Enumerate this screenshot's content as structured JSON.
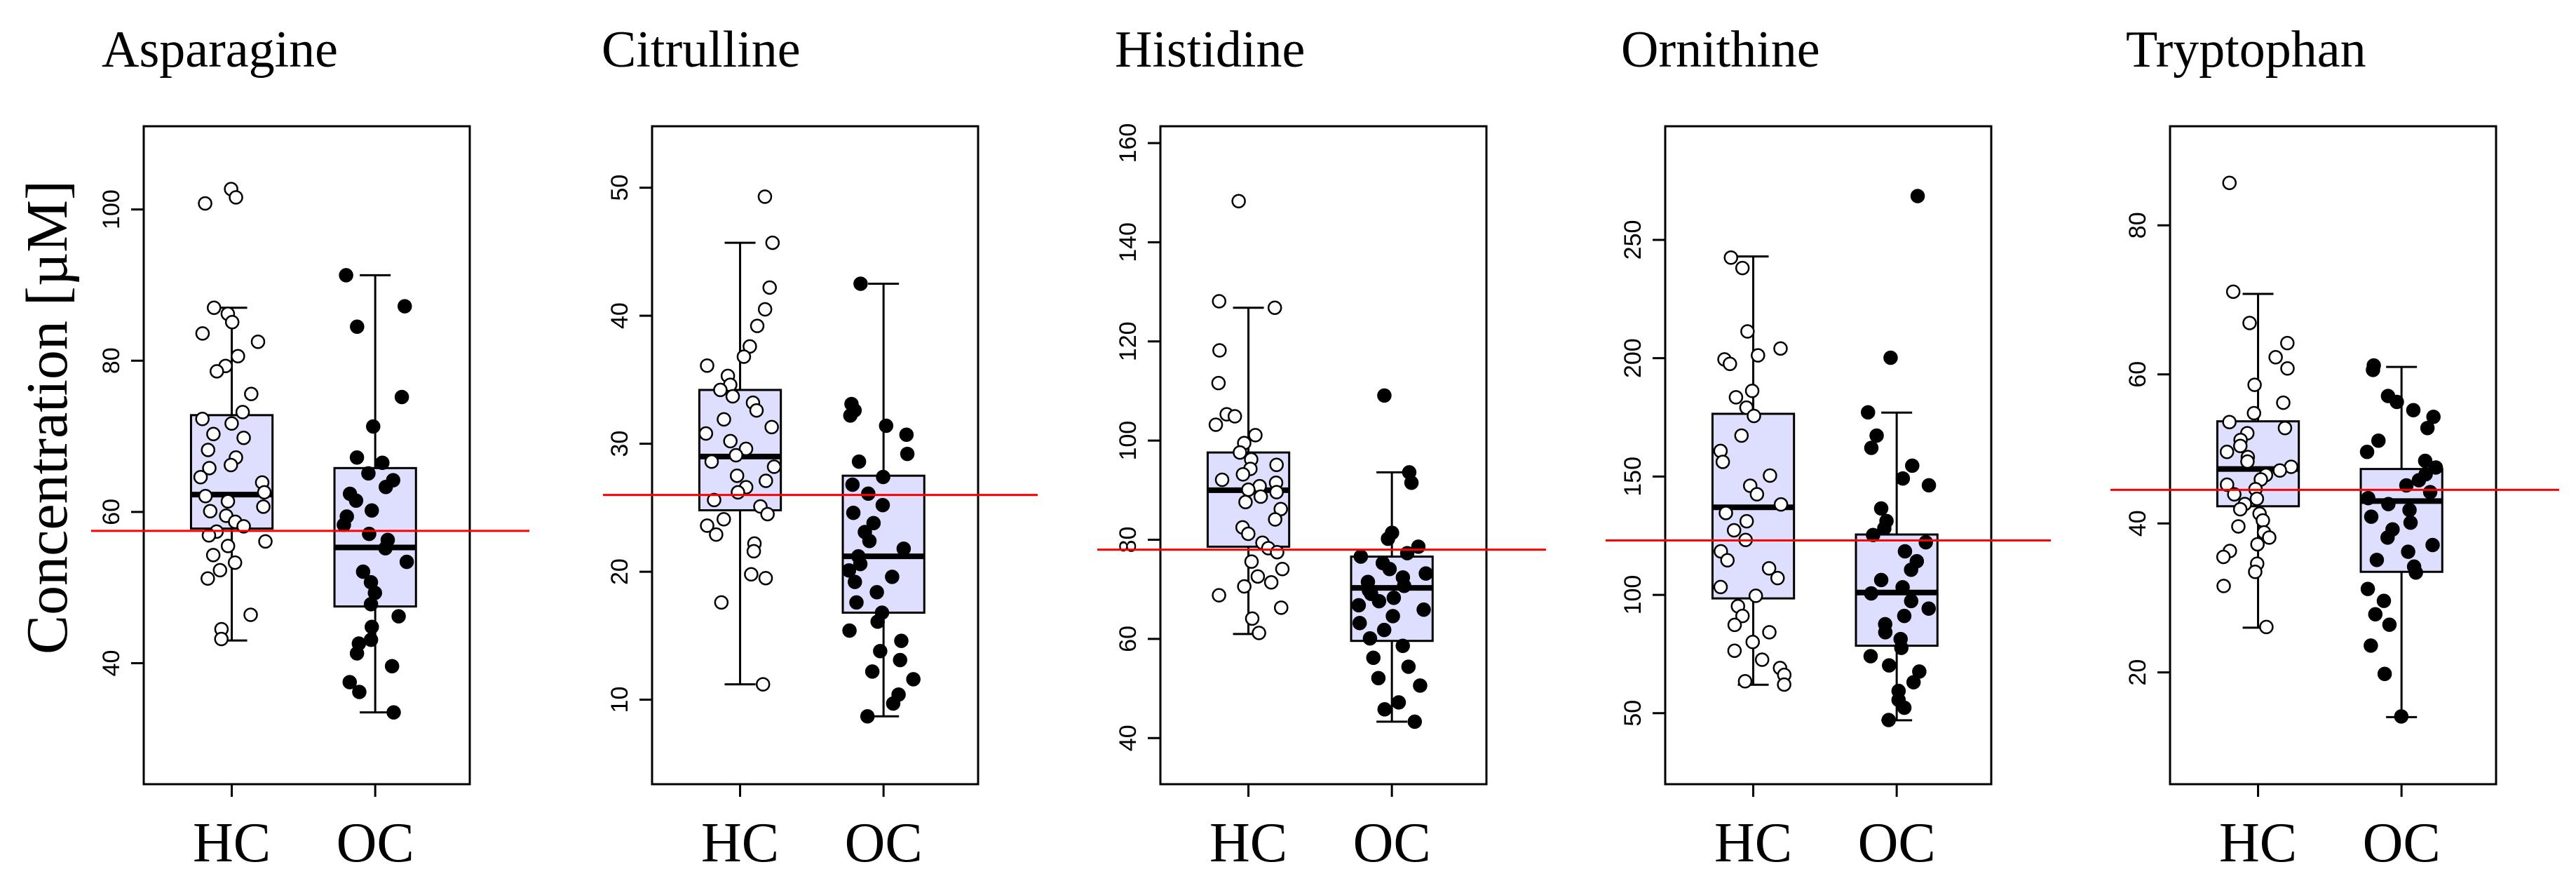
{
  "chart_data": {
    "type": "boxplot",
    "ylabel": "Concentration [µM]",
    "groups": [
      "HC",
      "OC"
    ],
    "panels": [
      {
        "title": "Asparagine",
        "yticks": [
          40,
          60,
          80,
          100
        ],
        "ylim": [
          24,
          111
        ],
        "reference_line": 57.5,
        "boxes": [
          {
            "group": "HC",
            "min": 43,
            "q1": 57.8,
            "median": 62.3,
            "q3": 72.8,
            "max": 87
          },
          {
            "group": "OC",
            "min": 33.5,
            "q1": 47.5,
            "median": 55.3,
            "q3": 65.8,
            "max": 91.3
          }
        ],
        "points": {
          "HC": [
            102.7,
            101.6,
            100.8,
            87,
            86.2,
            85.1,
            83.6,
            82.5,
            80.6,
            79.3,
            78.6,
            75.6,
            73.2,
            72.3,
            71.7,
            70.3,
            69.8,
            68.2,
            67.2,
            66.2,
            65.8,
            64.6,
            63.9,
            62.6,
            62.1,
            61.4,
            60.7,
            60.1,
            59.5,
            58.7,
            58.1,
            57.4,
            56.9,
            56.1,
            55.5,
            54.3,
            53.3,
            52.3,
            51.2,
            46.4,
            44.5,
            43.2
          ],
          "OC": [
            91.3,
            87.2,
            84.5,
            75.2,
            71.3,
            67.2,
            66.5,
            65.1,
            64.2,
            63.3,
            62.4,
            61.5,
            60.2,
            59.4,
            58.3,
            57.1,
            56.3,
            55.2,
            53.4,
            52.1,
            50.7,
            49.3,
            47.8,
            46.2,
            44.8,
            43.1,
            42.6,
            41.3,
            39.6,
            37.5,
            36.2,
            33.5
          ]
        }
      },
      {
        "title": "Citrulline",
        "yticks": [
          10,
          20,
          30,
          40,
          50
        ],
        "ylim": [
          3.4,
          54.8
        ],
        "reference_line": 26,
        "boxes": [
          {
            "group": "HC",
            "min": 11.2,
            "q1": 24.8,
            "median": 29,
            "q3": 34.2,
            "max": 45.7
          },
          {
            "group": "OC",
            "min": 8.7,
            "q1": 16.8,
            "median": 21.2,
            "q3": 27.5,
            "max": 42.5
          }
        ],
        "points": {
          "HC": [
            49.3,
            45.7,
            42.2,
            40.5,
            39.2,
            37.6,
            36.8,
            36.1,
            35.3,
            34.6,
            34.2,
            33.7,
            33.2,
            32.6,
            31.9,
            31.3,
            30.8,
            30.2,
            29.6,
            29.1,
            28.6,
            28.2,
            27.5,
            27.1,
            26.6,
            26.2,
            25.6,
            25.1,
            24.5,
            24.1,
            23.6,
            22.9,
            22.2,
            21.6,
            19.8,
            19.5,
            17.6,
            11.2
          ],
          "OC": [
            42.5,
            33.1,
            32.6,
            32.2,
            31.4,
            30.7,
            29.2,
            28.6,
            27.4,
            26.8,
            26.1,
            25.2,
            24.6,
            23.8,
            23.1,
            22.4,
            21.8,
            21.2,
            20.6,
            20.1,
            19.6,
            19.2,
            18.4,
            17.6,
            16.8,
            16.1,
            15.4,
            14.6,
            13.8,
            13.1,
            12.2,
            11.6,
            10.4,
            9.7,
            8.7
          ]
        }
      },
      {
        "title": "Histidine",
        "yticks": [
          40,
          60,
          80,
          100,
          120,
          140,
          160
        ],
        "ylim": [
          30.7,
          163.4
        ],
        "reference_line": 78,
        "boxes": [
          {
            "group": "HC",
            "min": 61,
            "q1": 78.6,
            "median": 90,
            "q3": 97.6,
            "max": 126.8
          },
          {
            "group": "OC",
            "min": 43.3,
            "q1": 59.6,
            "median": 70.3,
            "q3": 76.6,
            "max": 93.6
          }
        ],
        "points": {
          "HC": [
            148.3,
            128.1,
            126.8,
            118.2,
            111.6,
            105.3,
            104.9,
            103.2,
            101.1,
            99.5,
            97.6,
            96.2,
            95.1,
            94.3,
            93.2,
            92.1,
            91.5,
            90.8,
            90.1,
            89.6,
            88.7,
            87.6,
            86.2,
            84.1,
            82.5,
            81.2,
            79.4,
            78.3,
            77.5,
            75.6,
            74.1,
            72.6,
            71.4,
            70.6,
            68.8,
            66.3,
            64.1,
            61.2
          ],
          "OC": [
            109.1,
            93.6,
            91.5,
            81.4,
            80.2,
            78.6,
            77.3,
            76.6,
            75.3,
            74.1,
            73.2,
            72.4,
            71.5,
            70.7,
            69.8,
            69.1,
            68.3,
            67.6,
            66.8,
            65.9,
            64.6,
            63.2,
            61.8,
            60.1,
            58.6,
            56.2,
            54.4,
            52.1,
            50.6,
            47.2,
            45.8,
            43.3
          ]
        }
      },
      {
        "title": "Ornithine",
        "yticks": [
          50,
          100,
          150,
          200,
          250
        ],
        "ylim": [
          20,
          298
        ],
        "reference_line": 123,
        "boxes": [
          {
            "group": "HC",
            "min": 62,
            "q1": 98.5,
            "median": 137,
            "q3": 176.5,
            "max": 243
          },
          {
            "group": "OC",
            "min": 47,
            "q1": 78.5,
            "median": 101,
            "q3": 125.5,
            "max": 177
          }
        ],
        "points": {
          "HC": [
            242.5,
            238.1,
            211.3,
            204.1,
            201.2,
            199.5,
            197.6,
            186.2,
            183.5,
            179.1,
            175.6,
            167.3,
            160.8,
            156.2,
            150.4,
            146.1,
            142.5,
            138.2,
            134.6,
            131.1,
            127.3,
            123.2,
            118.4,
            114.6,
            111.2,
            107.1,
            103.3,
            99.6,
            95.2,
            91.1,
            87.3,
            84.2,
            80.1,
            76.4,
            72.6,
            69.1,
            66.2,
            63.5,
            62.1
          ],
          "OC": [
            268.5,
            200.2,
            177.1,
            167.3,
            162.1,
            154.6,
            149.2,
            146.3,
            136.5,
            131.2,
            128.1,
            125.3,
            122.2,
            118.4,
            114.2,
            110.6,
            106.3,
            103.2,
            100.6,
            97.4,
            94.2,
            91.1,
            87.6,
            84.2,
            81.3,
            77.6,
            74.1,
            70.2,
            67.6,
            63.1,
            59.4,
            55.6,
            52.3,
            47.1
          ]
        }
      },
      {
        "title": "Tryptophan",
        "yticks": [
          20,
          40,
          60,
          80
        ],
        "ylim": [
          5,
          93.3
        ],
        "reference_line": 44.5,
        "boxes": [
          {
            "group": "HC",
            "min": 26,
            "q1": 42.3,
            "median": 47.3,
            "q3": 53.7,
            "max": 70.8
          },
          {
            "group": "OC",
            "min": 14,
            "q1": 33.5,
            "median": 43,
            "q3": 47.3,
            "max": 61
          }
        ],
        "points": {
          "HC": [
            85.7,
            71.1,
            66.9,
            64.2,
            62.3,
            60.8,
            58.6,
            56.2,
            54.8,
            53.6,
            52.8,
            52.1,
            51.2,
            50.4,
            49.6,
            48.9,
            48.3,
            47.6,
            47.1,
            46.5,
            45.9,
            45.2,
            44.6,
            43.9,
            43.3,
            42.6,
            41.9,
            41.3,
            40.4,
            39.6,
            38.8,
            38.1,
            37.2,
            36.3,
            35.5,
            34.6,
            33.5,
            31.6,
            26.1
          ],
          "OC": [
            61.2,
            60.6,
            57.1,
            56.3,
            55.2,
            54.3,
            52.8,
            51.1,
            49.6,
            48.4,
            47.5,
            46.6,
            45.8,
            45.1,
            44.2,
            43.4,
            42.6,
            41.8,
            40.9,
            40.1,
            39.2,
            38.1,
            37.1,
            36.2,
            35.1,
            34.2,
            33.4,
            31.2,
            29.6,
            27.8,
            26.4,
            23.6,
            19.8,
            14.1
          ]
        }
      }
    ]
  }
}
